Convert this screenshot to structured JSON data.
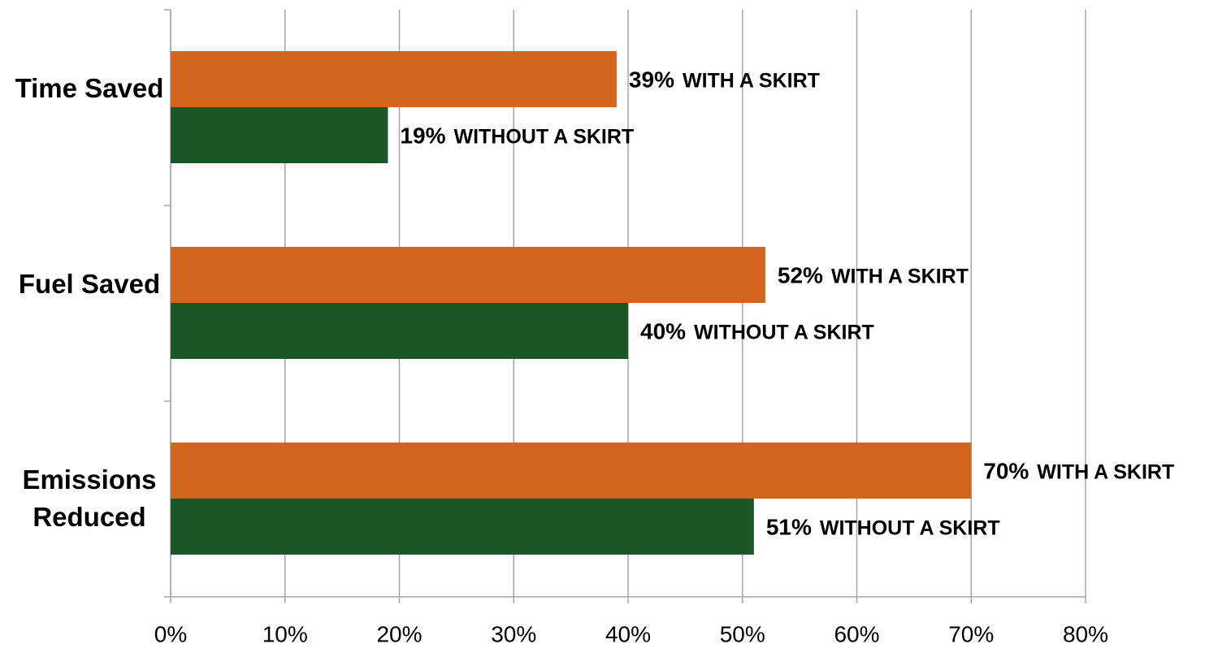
{
  "chart_data": {
    "type": "bar",
    "orientation": "horizontal",
    "categories": [
      "Time Saved",
      "Fuel Saved",
      "Emissions Reduced"
    ],
    "series": [
      {
        "name": "WITH A SKIRT",
        "color": "#d2661e",
        "values": [
          39,
          52,
          70
        ],
        "value_labels": [
          "39%",
          "52%",
          "70%"
        ]
      },
      {
        "name": "WITHOUT A SKIRT",
        "color": "#1a5626",
        "values": [
          19,
          40,
          51
        ],
        "value_labels": [
          "19%",
          "40%",
          "51%"
        ]
      }
    ],
    "xlim": [
      0,
      80
    ],
    "xticks": [
      {
        "value": 0,
        "label": "0%"
      },
      {
        "value": 10,
        "label": "10%"
      },
      {
        "value": 20,
        "label": "20%"
      },
      {
        "value": 30,
        "label": "30%"
      },
      {
        "value": 40,
        "label": "40%"
      },
      {
        "value": 50,
        "label": "50%"
      },
      {
        "value": 60,
        "label": "60%"
      },
      {
        "value": 70,
        "label": "70%"
      },
      {
        "value": 80,
        "label": "80%"
      }
    ],
    "grid": true
  }
}
